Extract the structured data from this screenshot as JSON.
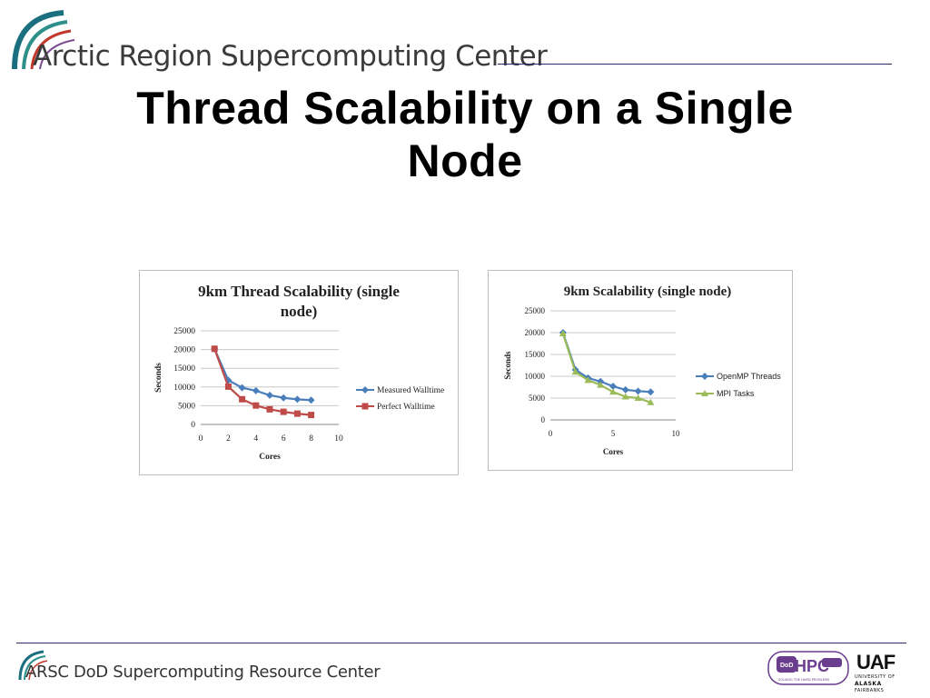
{
  "header": {
    "org_name": "Arctic Region Supercomputing Center"
  },
  "slide": {
    "title_line1": "Thread Scalability on a Single",
    "title_line2": "Node"
  },
  "footer": {
    "center_name": "ARSC DoD Supercomputing Resource Center",
    "hpc_logo": {
      "main": "HPC",
      "tagline": "SOLVING THE HARD PROBLEMS"
    },
    "uaf_logo": {
      "main": "UAF",
      "line1": "UNIVERSITY OF",
      "line2": "ALASKA",
      "line3": "FAIRBANKS"
    }
  },
  "chart_data": [
    {
      "type": "line",
      "title": "9km Thread Scalability (single node)",
      "title_lines": [
        "9km Thread Scalability (single",
        "node)"
      ],
      "xlabel": "Cores",
      "ylabel": "Seconds",
      "xlim": [
        0,
        10
      ],
      "ylim": [
        0,
        25000
      ],
      "xticks": [
        0,
        2,
        4,
        6,
        8,
        10
      ],
      "yticks": [
        0,
        5000,
        10000,
        15000,
        20000,
        25000
      ],
      "grid": "horizontal",
      "legend_position": "right",
      "series": [
        {
          "name": "Measured Walltime",
          "color": "#4a7ebb",
          "marker": "diamond",
          "x": [
            1,
            2,
            3,
            4,
            5,
            6,
            7,
            8
          ],
          "y": [
            20200,
            11800,
            9800,
            9000,
            7800,
            7100,
            6700,
            6500
          ]
        },
        {
          "name": "Perfect Walltime",
          "color": "#be4b48",
          "marker": "square",
          "x": [
            1,
            2,
            3,
            4,
            5,
            6,
            7,
            8
          ],
          "y": [
            20200,
            10100,
            6733,
            5050,
            4040,
            3367,
            2886,
            2525
          ]
        }
      ]
    },
    {
      "type": "line",
      "title": "9km Scalability (single node)",
      "title_lines": [
        "9km Scalability (single node)"
      ],
      "xlabel": "Cores",
      "ylabel": "Seconds",
      "xlim": [
        0,
        10
      ],
      "ylim": [
        0,
        25000
      ],
      "xticks": [
        0,
        5,
        10
      ],
      "yticks": [
        0,
        5000,
        10000,
        15000,
        20000,
        25000
      ],
      "grid": "horizontal",
      "legend_position": "right",
      "series": [
        {
          "name": "OpenMP Threads",
          "color": "#4a7ebb",
          "marker": "diamond",
          "x": [
            1,
            2,
            3,
            4,
            5,
            6,
            7,
            8
          ],
          "y": [
            20000,
            11500,
            9600,
            8800,
            7700,
            6900,
            6600,
            6400
          ]
        },
        {
          "name": "MPI Tasks",
          "color": "#9bbb59",
          "marker": "triangle",
          "x": [
            1,
            2,
            3,
            4,
            5,
            6,
            7,
            8
          ],
          "y": [
            19800,
            11000,
            9100,
            8000,
            6400,
            5300,
            5000,
            4000
          ]
        }
      ]
    }
  ]
}
